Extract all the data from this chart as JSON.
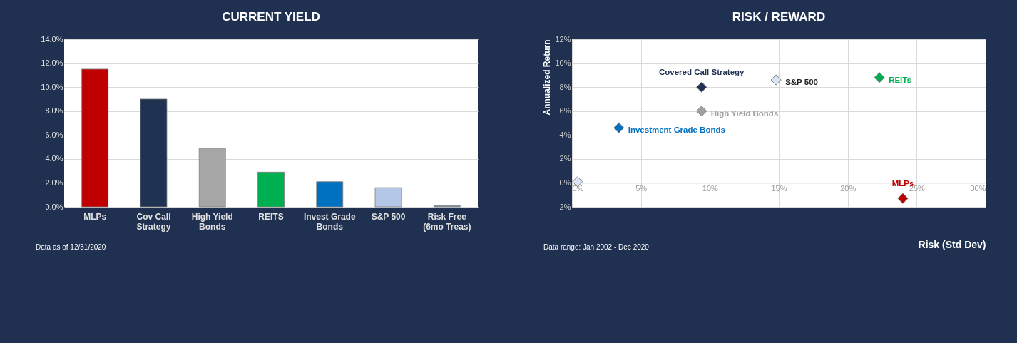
{
  "chart_data": [
    {
      "type": "bar",
      "title": "CURRENT YIELD",
      "categories": [
        "MLPs",
        "Cov Call Strategy",
        "High Yield Bonds",
        "REITS",
        "Invest Grade Bonds",
        "S&P 500",
        "Risk Free (6mo Treas)"
      ],
      "values": [
        11.5,
        9.0,
        4.9,
        2.9,
        2.1,
        1.6,
        0.1
      ],
      "colors": [
        "#c00000",
        "#1f3251",
        "#a6a6a6",
        "#00b050",
        "#0070c0",
        "#b4c7e7",
        "#8497b0"
      ],
      "ylim": [
        0,
        14
      ],
      "yticks": [
        {
          "value": 0,
          "label": "0.0%"
        },
        {
          "value": 2,
          "label": "2.0%"
        },
        {
          "value": 4,
          "label": "4.0%"
        },
        {
          "value": 6,
          "label": "6.0%"
        },
        {
          "value": 8,
          "label": "8.0%"
        },
        {
          "value": 10,
          "label": "10.0%"
        },
        {
          "value": 12,
          "label": "12.0%"
        },
        {
          "value": 14,
          "label": "14.0%"
        }
      ],
      "grid": "y",
      "annotations": [
        "Data as of 12/31/2020"
      ]
    },
    {
      "type": "scatter",
      "title": "RISK / REWARD",
      "xlabel": "Risk (Std Dev)",
      "ylabel": "Annualized Return",
      "marker": "diamond",
      "legend": false,
      "grid": true,
      "series": [
        {
          "color": "#dae3f3",
          "x": [
            0.4
          ],
          "values": [
            0.1
          ]
        },
        {
          "name": "Investment Grade Bonds",
          "color": "#0070c0",
          "x": [
            3.4
          ],
          "values": [
            4.6
          ]
        },
        {
          "name": "Covered Call Strategy",
          "color": "#1f3251",
          "x": [
            9.4
          ],
          "values": [
            8.0
          ]
        },
        {
          "name": "High Yield Bonds",
          "color": "#a0a0a0",
          "x": [
            9.4
          ],
          "values": [
            6.0
          ]
        },
        {
          "name": "S&P 500",
          "color": "#dae3f3",
          "x": [
            14.8
          ],
          "values": [
            8.6
          ]
        },
        {
          "name": "REITs",
          "color": "#00b050",
          "x": [
            22.3
          ],
          "values": [
            8.8
          ]
        },
        {
          "name": "MLPs",
          "color": "#c00000",
          "x": [
            24.0
          ],
          "values": [
            -1.3
          ]
        }
      ],
      "xlim": [
        0,
        30
      ],
      "xticks": [
        {
          "value": 0,
          "label": "0%"
        },
        {
          "value": 5,
          "label": "5%"
        },
        {
          "value": 10,
          "label": "10%"
        },
        {
          "value": 15,
          "label": "15%"
        },
        {
          "value": 20,
          "label": "20%"
        },
        {
          "value": 25,
          "label": "25%"
        },
        {
          "value": 30,
          "label": "30%"
        }
      ],
      "ylim": [
        -2,
        12
      ],
      "yticks": [
        {
          "value": -2,
          "label": "-2%"
        },
        {
          "value": 0,
          "label": "0%"
        },
        {
          "value": 2,
          "label": "2%"
        },
        {
          "value": 4,
          "label": "4%"
        },
        {
          "value": 6,
          "label": "6%"
        },
        {
          "value": 8,
          "label": "8%"
        },
        {
          "value": 10,
          "label": "10%"
        },
        {
          "value": 12,
          "label": "12%"
        }
      ],
      "annotations": [
        "Data range: Jan 2002 - Dec 2020"
      ]
    }
  ]
}
